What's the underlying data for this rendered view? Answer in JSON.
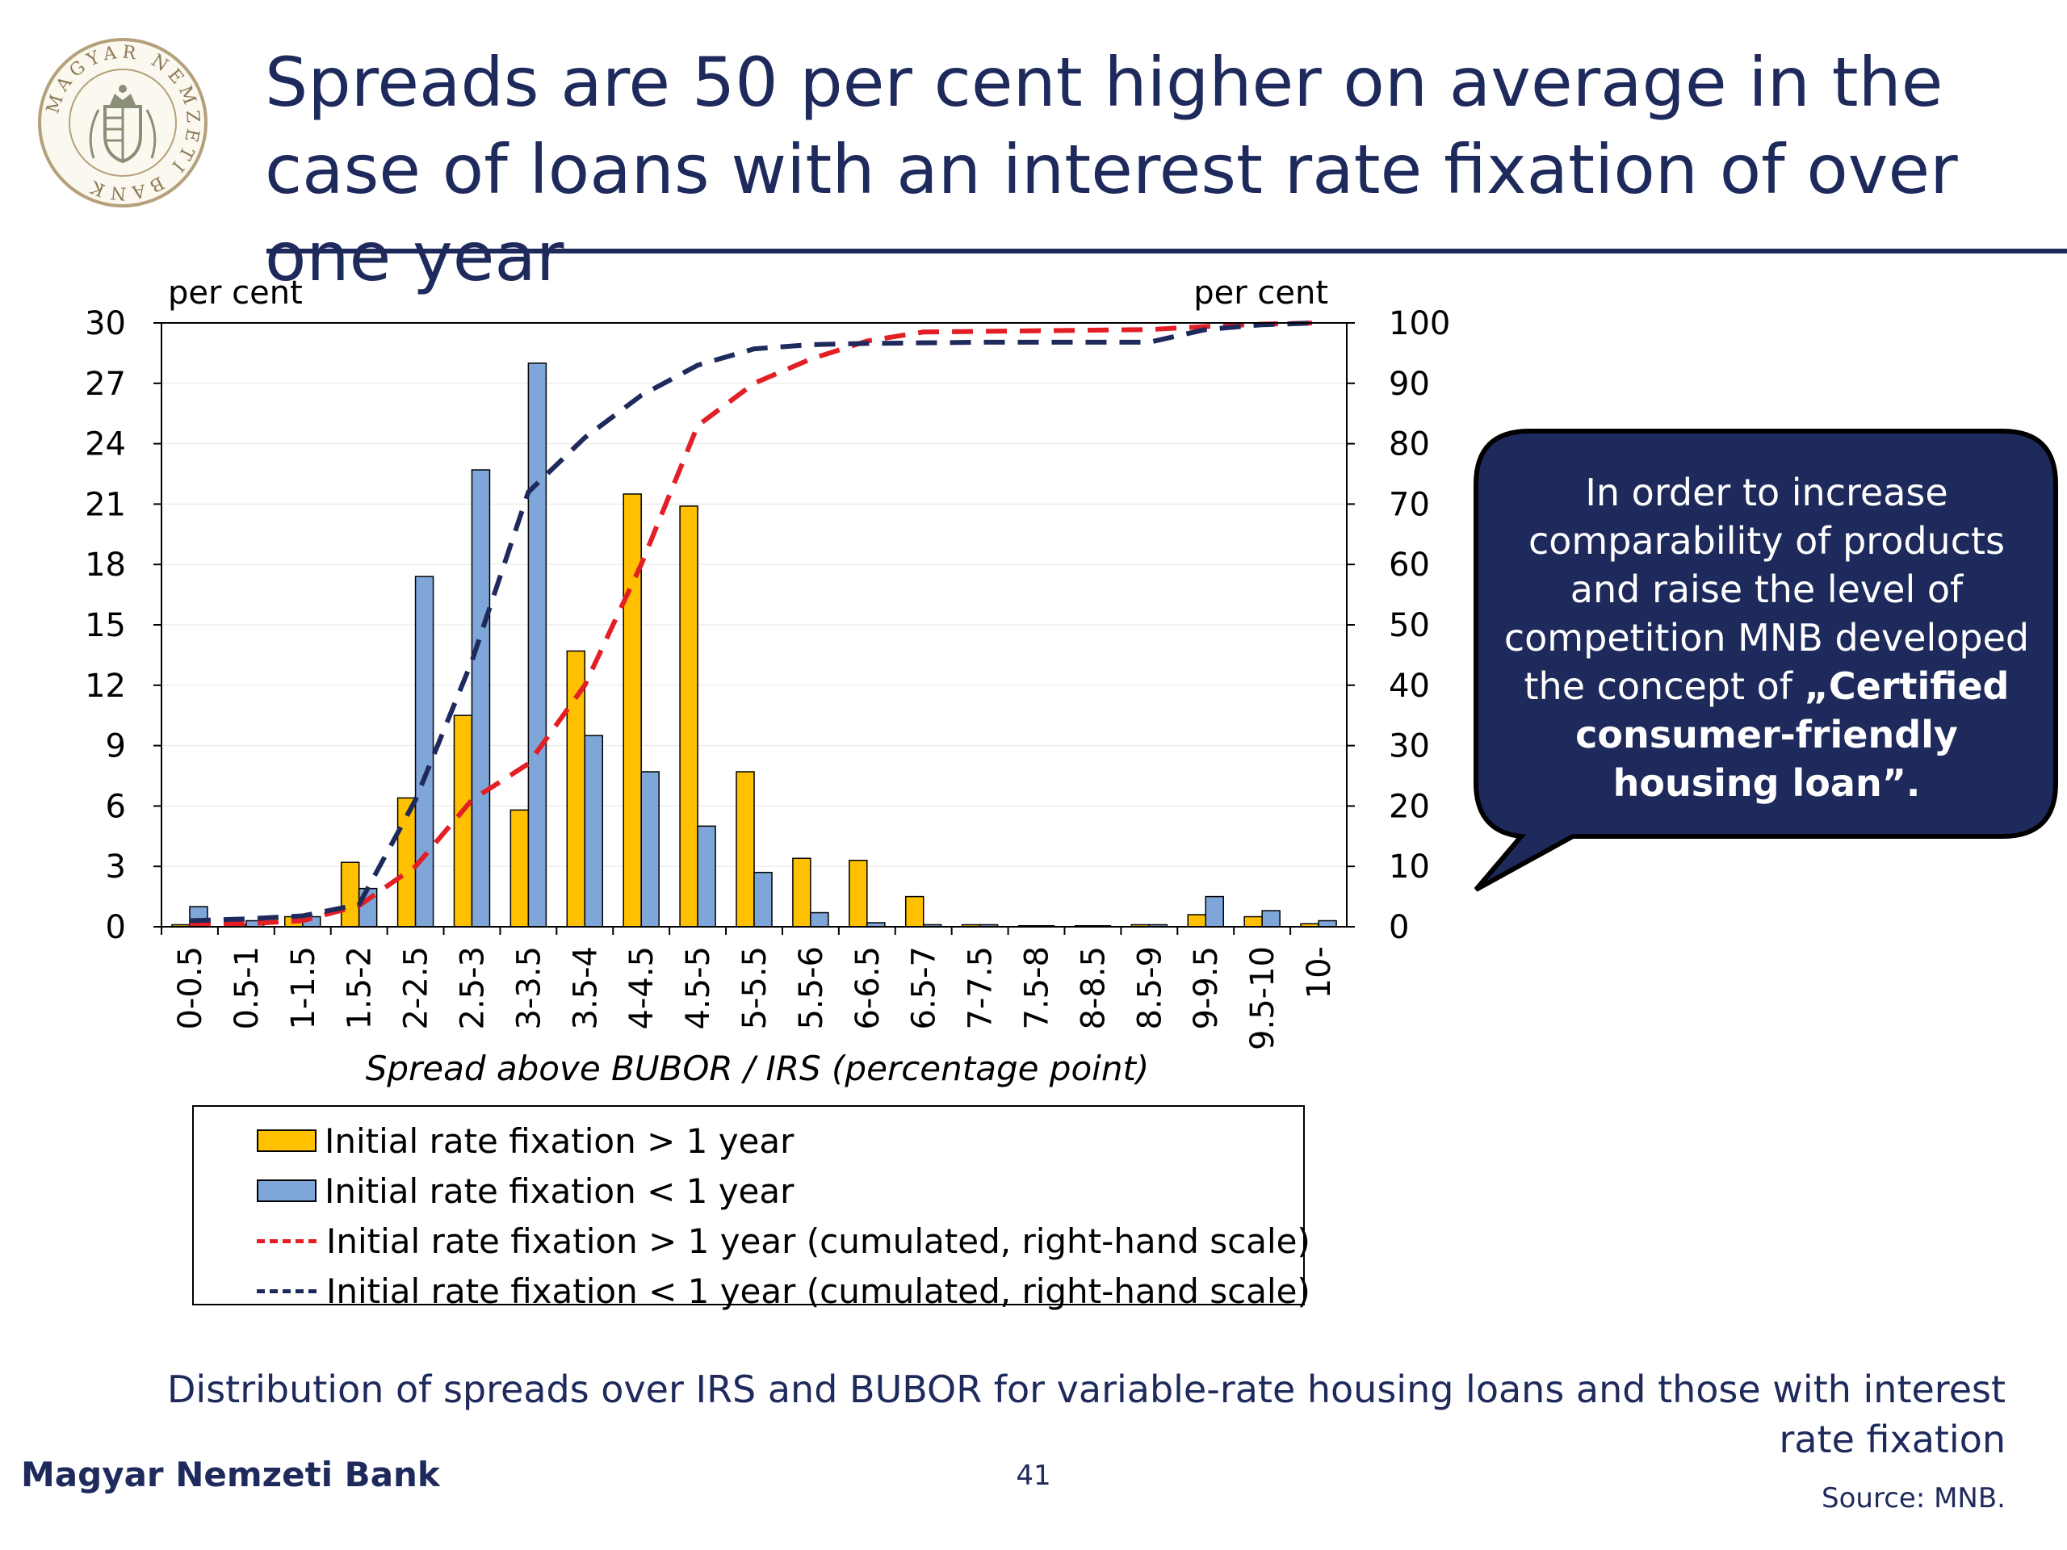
{
  "title": "Spreads are 50 per cent higher on average in the case of loans with an interest rate fixation of over one year",
  "logo": {
    "ring_text": "MAGYAR NEMZETI BANK",
    "colors": {
      "ring": "#b4a07a",
      "emblem": "#8c8f78"
    }
  },
  "colors": {
    "navy": "#1f2a5c",
    "orange": "#ffc000",
    "blue": "#7ea6d9",
    "red": "#e31e24",
    "dark_blue": "#1f2a5c"
  },
  "callout": {
    "text_plain": "In order to increase comparability of products and raise the level of competition MNB developed the concept of ",
    "text_bold": "„Certified consumer-friendly housing loan”."
  },
  "chart_data": {
    "type": "bar",
    "left_unit": "per cent",
    "right_unit": "per cent",
    "xlabel": "Spread above BUBOR / IRS (percentage point)",
    "ylim_left": [
      0,
      30
    ],
    "yticks_left": [
      0,
      3,
      6,
      9,
      12,
      15,
      18,
      21,
      24,
      27,
      30
    ],
    "ylim_right": [
      0,
      100
    ],
    "yticks_right": [
      0,
      10,
      20,
      30,
      40,
      50,
      60,
      70,
      80,
      90,
      100
    ],
    "categories": [
      "0-0.5",
      "0.5-1",
      "1-1.5",
      "1.5-2",
      "2-2.5",
      "2.5-3",
      "3-3.5",
      "3.5-4",
      "4-4.5",
      "4.5-5",
      "5-5.5",
      "5.5-6",
      "6-6.5",
      "6.5-7",
      "7-7.5",
      "7.5-8",
      "8-8.5",
      "8.5-9",
      "9-9.5",
      "9.5-10",
      "10-"
    ],
    "series": [
      {
        "name": "Initial rate fixation > 1 year",
        "type": "bar",
        "axis": "left",
        "color": "#ffc000",
        "values": [
          0.1,
          0.1,
          0.5,
          3.2,
          6.4,
          10.5,
          5.8,
          13.7,
          21.5,
          20.9,
          7.7,
          3.4,
          3.3,
          1.5,
          0.1,
          0.05,
          0.05,
          0.1,
          0.6,
          0.5,
          0.15
        ]
      },
      {
        "name": "Initial rate fixation < 1 year",
        "type": "bar",
        "axis": "left",
        "color": "#7ea6d9",
        "values": [
          1.0,
          0.3,
          0.5,
          1.9,
          17.4,
          22.7,
          28.0,
          9.5,
          7.7,
          5.0,
          2.7,
          0.7,
          0.2,
          0.1,
          0.1,
          0.05,
          0.05,
          0.1,
          1.5,
          0.8,
          0.3
        ]
      },
      {
        "name": "Initial rate fixation > 1 year (cumulated, right-hand scale)",
        "type": "line",
        "axis": "right",
        "color": "#e31e24",
        "values": [
          0.3,
          0.5,
          1.0,
          3.5,
          10.0,
          21.0,
          27.0,
          40.0,
          60.0,
          83.0,
          90.0,
          94.0,
          97.0,
          98.5,
          98.6,
          98.7,
          98.8,
          98.9,
          99.4,
          99.8,
          100
        ]
      },
      {
        "name": "Initial rate fixation < 1 year (cumulated, right-hand scale)",
        "type": "line",
        "axis": "right",
        "color": "#1f2a5c",
        "values": [
          1.0,
          1.3,
          1.8,
          3.7,
          21.0,
          44.0,
          72.0,
          81.0,
          88.0,
          93.0,
          95.7,
          96.4,
          96.6,
          96.7,
          96.8,
          96.8,
          96.8,
          96.8,
          98.9,
          99.7,
          100
        ]
      }
    ]
  },
  "caption": "Distribution of spreads over IRS and BUBOR for variable-rate housing loans and those with interest rate fixation",
  "footer": {
    "bank": "Magyar Nemzeti Bank",
    "page": "41",
    "source": "Source: MNB."
  }
}
